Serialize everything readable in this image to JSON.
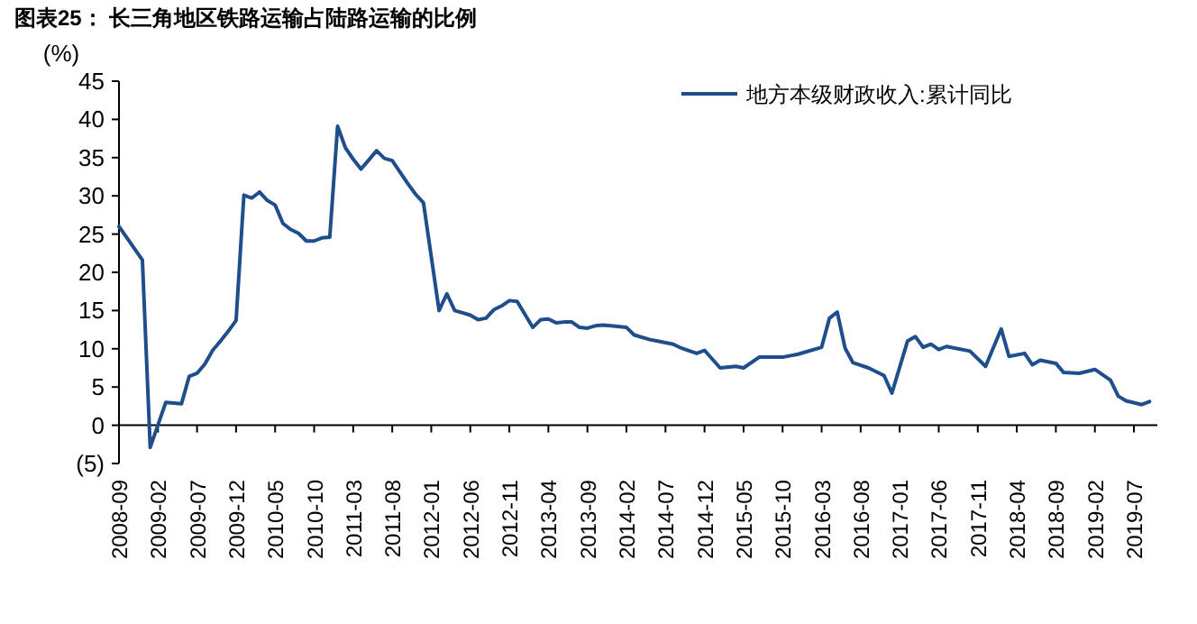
{
  "chart_data": {
    "type": "line",
    "title": "图表25： 长三角地区铁路运输占陆路运输的比例",
    "ylabel": "(%)",
    "x": [
      "2008-09",
      "2008-12",
      "2009-01",
      "2009-03",
      "2009-04",
      "2009-05",
      "2009-06",
      "2009-07",
      "2009-08",
      "2009-09",
      "2009-10",
      "2009-11",
      "2009-12",
      "2010-01",
      "2010-02",
      "2010-03",
      "2010-04",
      "2010-05",
      "2010-06",
      "2010-07",
      "2010-08",
      "2010-09",
      "2010-10",
      "2010-11",
      "2010-12",
      "2011-01",
      "2011-02",
      "2011-03",
      "2011-04",
      "2011-05",
      "2011-06",
      "2011-07",
      "2011-08",
      "2011-09",
      "2011-10",
      "2011-11",
      "2011-12",
      "2012-02",
      "2012-03",
      "2012-04",
      "2012-05",
      "2012-06",
      "2012-07",
      "2012-08",
      "2012-09",
      "2012-10",
      "2012-11",
      "2012-12",
      "2013-02",
      "2013-03",
      "2013-04",
      "2013-05",
      "2013-06",
      "2013-07",
      "2013-08",
      "2013-09",
      "2013-10",
      "2013-11",
      "2013-12",
      "2014-02",
      "2014-03",
      "2014-05",
      "2014-06",
      "2014-08",
      "2014-09",
      "2014-11",
      "2014-12",
      "2015-02",
      "2015-04",
      "2015-05",
      "2015-07",
      "2015-10",
      "2015-12",
      "2016-03",
      "2016-04",
      "2016-05",
      "2016-06",
      "2016-07",
      "2016-09",
      "2016-11",
      "2016-12",
      "2017-02",
      "2017-03",
      "2017-04",
      "2017-05",
      "2017-06",
      "2017-07",
      "2017-10",
      "2017-12",
      "2018-02",
      "2018-03",
      "2018-05",
      "2018-06",
      "2018-07",
      "2018-09",
      "2018-10",
      "2018-12",
      "2019-02",
      "2019-04",
      "2019-05",
      "2019-06",
      "2019-08",
      "2019-09"
    ],
    "series": [
      {
        "name": "地方本级财政收入:累计同比",
        "color": "#1f4e8c",
        "values": [
          26.0,
          21.6,
          -2.9,
          3.0,
          2.9,
          2.8,
          6.4,
          6.8,
          8.0,
          9.8,
          11.0,
          12.3,
          13.7,
          30.1,
          29.7,
          30.5,
          29.4,
          28.8,
          26.4,
          25.6,
          25.1,
          24.1,
          24.1,
          24.5,
          24.6,
          39.1,
          36.3,
          34.8,
          33.5,
          34.7,
          35.9,
          34.9,
          34.6,
          33.1,
          31.6,
          30.2,
          29.1,
          15.0,
          17.2,
          15.0,
          14.7,
          14.4,
          13.8,
          14.0,
          15.1,
          15.6,
          16.3,
          16.2,
          12.8,
          13.8,
          13.9,
          13.4,
          13.5,
          13.5,
          12.8,
          12.7,
          13.0,
          13.1,
          13.0,
          12.8,
          11.8,
          11.2,
          11.0,
          10.6,
          10.1,
          9.4,
          9.8,
          7.5,
          7.7,
          7.5,
          8.9,
          8.9,
          9.3,
          10.2,
          14.0,
          14.8,
          10.1,
          8.2,
          7.5,
          6.5,
          4.2,
          11.0,
          11.6,
          10.2,
          10.6,
          9.9,
          10.3,
          9.7,
          7.7,
          12.6,
          9.0,
          9.4,
          7.9,
          8.5,
          8.1,
          6.9,
          6.8,
          7.3,
          5.9,
          3.8,
          3.2,
          2.7,
          3.1
        ]
      }
    ],
    "xlim": [
      "2008-09",
      "2019-10"
    ],
    "xticks": [
      "2008-09",
      "2009-02",
      "2009-07",
      "2009-12",
      "2010-05",
      "2010-10",
      "2011-03",
      "2011-08",
      "2012-01",
      "2012-06",
      "2012-11",
      "2013-04",
      "2013-09",
      "2014-02",
      "2014-07",
      "2014-12",
      "2015-05",
      "2015-10",
      "2016-03",
      "2016-08",
      "2017-01",
      "2017-06",
      "2017-11",
      "2018-04",
      "2018-09",
      "2019-02",
      "2019-07"
    ],
    "ylim": [
      -5,
      45
    ],
    "yticks": [
      {
        "value": -5,
        "label": "(5)"
      },
      0,
      5,
      10,
      15,
      20,
      25,
      30,
      35,
      40,
      45
    ],
    "legend": "top right",
    "grid": false,
    "marker": "none",
    "line_style": "solid"
  }
}
